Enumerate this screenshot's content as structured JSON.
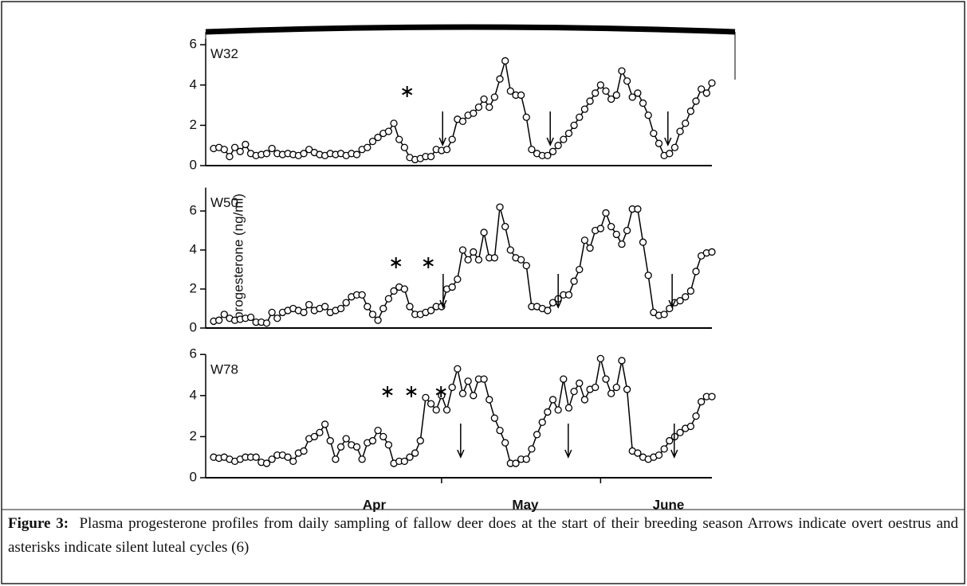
{
  "chart_data": [
    {
      "type": "line",
      "title": "W32",
      "x": [
        0,
        1,
        2,
        3,
        4,
        5,
        6,
        7,
        8,
        9,
        10,
        11,
        12,
        13,
        14,
        15,
        16,
        17,
        18,
        19,
        20,
        21,
        22,
        23,
        24,
        25,
        26,
        27,
        28,
        29,
        30,
        31,
        32,
        33,
        34,
        35,
        36,
        37,
        38,
        39,
        40,
        41,
        42,
        43,
        44,
        45,
        46,
        47,
        48,
        49,
        50,
        51,
        52,
        53,
        54,
        55,
        56,
        57,
        58,
        59,
        60,
        61,
        62,
        63,
        64,
        65,
        66,
        67,
        68,
        69,
        70,
        71,
        72,
        73,
        74,
        75,
        76,
        77,
        78,
        79,
        80,
        81,
        82,
        83,
        84,
        85,
        86,
        87,
        88,
        89,
        90,
        91,
        92,
        93,
        94
      ],
      "values": [
        0.85,
        0.9,
        0.8,
        0.45,
        0.9,
        0.7,
        1.05,
        0.6,
        0.5,
        0.55,
        0.6,
        0.85,
        0.6,
        0.55,
        0.6,
        0.55,
        0.5,
        0.6,
        0.8,
        0.65,
        0.55,
        0.5,
        0.6,
        0.55,
        0.6,
        0.5,
        0.6,
        0.55,
        0.8,
        0.9,
        1.2,
        1.4,
        1.6,
        1.7,
        2.1,
        1.3,
        0.9,
        0.4,
        0.3,
        0.35,
        0.45,
        0.45,
        0.8,
        0.75,
        0.8,
        1.3,
        2.3,
        2.2,
        2.5,
        2.6,
        2.9,
        3.3,
        2.9,
        3.4,
        4.3,
        5.2,
        3.7,
        3.5,
        3.5,
        2.4,
        0.8,
        0.6,
        0.5,
        0.5,
        0.7,
        1.0,
        1.3,
        1.6,
        2.0,
        2.4,
        2.8,
        3.2,
        3.6,
        4.0,
        3.7,
        3.3,
        3.5,
        4.7,
        4.2,
        3.4,
        3.6,
        3.1,
        2.5,
        1.6,
        1.1,
        0.5,
        0.6,
        0.9,
        1.7,
        2.1,
        2.7,
        3.2,
        3.8,
        3.6,
        4.1
      ],
      "xlim": [
        0,
        94
      ],
      "ylim": [
        0,
        6.3
      ],
      "yticks": [
        0,
        2,
        4,
        6
      ],
      "silent_luteal_cycles": [
        36.5
      ],
      "overt_oestrus": [
        43.2,
        63.5,
        85.7
      ]
    },
    {
      "type": "line",
      "title": "W50",
      "x": [
        0,
        1,
        2,
        3,
        4,
        5,
        6,
        7,
        8,
        9,
        10,
        11,
        12,
        13,
        14,
        15,
        16,
        17,
        18,
        19,
        20,
        21,
        22,
        23,
        24,
        25,
        26,
        27,
        28,
        29,
        30,
        31,
        32,
        33,
        34,
        35,
        36,
        37,
        38,
        39,
        40,
        41,
        42,
        43,
        44,
        45,
        46,
        47,
        48,
        49,
        50,
        51,
        52,
        53,
        54,
        55,
        56,
        57,
        58,
        59,
        60,
        61,
        62,
        63,
        64,
        65,
        66,
        67,
        68,
        69,
        70,
        71,
        72,
        73,
        74,
        75,
        76,
        77,
        78,
        79,
        80,
        81,
        82,
        83,
        84,
        85,
        86,
        87,
        88,
        89,
        90,
        91,
        92,
        93,
        94
      ],
      "values": [
        0.35,
        0.4,
        0.7,
        0.5,
        0.4,
        0.45,
        0.5,
        0.55,
        0.3,
        0.3,
        0.25,
        0.8,
        0.5,
        0.8,
        0.9,
        1.0,
        0.9,
        0.8,
        1.2,
        0.9,
        1.0,
        1.1,
        0.8,
        0.9,
        1.0,
        1.3,
        1.6,
        1.7,
        1.7,
        1.1,
        0.7,
        0.4,
        1.0,
        1.5,
        1.9,
        2.1,
        2.0,
        1.1,
        0.7,
        0.7,
        0.8,
        0.9,
        1.1,
        1.1,
        2.0,
        2.1,
        2.5,
        4.0,
        3.5,
        3.9,
        3.5,
        4.9,
        3.6,
        3.6,
        6.2,
        5.2,
        4.0,
        3.6,
        3.5,
        3.2,
        1.1,
        1.1,
        1.0,
        0.9,
        1.3,
        1.5,
        1.7,
        1.7,
        2.4,
        3.0,
        4.5,
        4.1,
        5.0,
        5.1,
        5.9,
        5.2,
        4.8,
        4.3,
        5.0,
        6.1,
        6.1,
        4.4,
        2.7,
        0.8,
        0.65,
        0.7,
        1.0,
        1.3,
        1.4,
        1.6,
        1.9,
        2.9,
        3.7,
        3.85,
        3.9
      ],
      "xlim": [
        0,
        94
      ],
      "ylim": [
        0,
        7.2
      ],
      "yticks": [
        0,
        2,
        4,
        6
      ],
      "silent_luteal_cycles": [
        34.4,
        40.5
      ],
      "overt_oestrus": [
        43.3,
        65,
        86.5
      ]
    },
    {
      "type": "line",
      "title": "W78",
      "x": [
        0,
        1,
        2,
        3,
        4,
        5,
        6,
        7,
        8,
        9,
        10,
        11,
        12,
        13,
        14,
        15,
        16,
        17,
        18,
        19,
        20,
        21,
        22,
        23,
        24,
        25,
        26,
        27,
        28,
        29,
        30,
        31,
        32,
        33,
        34,
        35,
        36,
        37,
        38,
        39,
        40,
        41,
        42,
        43,
        44,
        45,
        46,
        47,
        48,
        49,
        50,
        51,
        52,
        53,
        54,
        55,
        56,
        57,
        58,
        59,
        60,
        61,
        62,
        63,
        64,
        65,
        66,
        67,
        68,
        69,
        70,
        71,
        72,
        73,
        74,
        75,
        76,
        77,
        78,
        79,
        80,
        81,
        82,
        83,
        84,
        85,
        86,
        87,
        88,
        89,
        90,
        91,
        92,
        93,
        94
      ],
      "values": [
        1.0,
        0.95,
        1.0,
        0.9,
        0.8,
        0.9,
        1.0,
        1.0,
        1.0,
        0.75,
        0.7,
        0.9,
        1.1,
        1.1,
        1.0,
        0.8,
        1.2,
        1.3,
        1.9,
        2.0,
        2.2,
        2.6,
        1.8,
        0.9,
        1.5,
        1.9,
        1.6,
        1.5,
        0.9,
        1.7,
        1.8,
        2.3,
        2.0,
        1.6,
        0.7,
        0.8,
        0.8,
        1.0,
        1.2,
        1.8,
        3.9,
        3.6,
        3.3,
        4.0,
        3.3,
        4.4,
        5.3,
        4.1,
        4.7,
        4.0,
        4.8,
        4.8,
        3.8,
        2.9,
        2.3,
        1.7,
        0.7,
        0.7,
        0.9,
        0.9,
        1.4,
        2.1,
        2.7,
        3.2,
        3.8,
        3.3,
        4.8,
        3.4,
        4.2,
        4.6,
        3.8,
        4.3,
        4.4,
        5.8,
        4.8,
        4.1,
        4.4,
        5.7,
        4.3,
        1.3,
        1.2,
        1.0,
        0.9,
        1.0,
        1.1,
        1.4,
        1.8,
        2.0,
        2.2,
        2.4,
        2.5,
        3.0,
        3.7,
        3.95,
        3.95
      ],
      "xlim": [
        0,
        94
      ],
      "ylim": [
        0,
        6
      ],
      "yticks": [
        0,
        2,
        4,
        6
      ],
      "xticks": [
        {
          "value": 30.3,
          "label": "Apr"
        },
        {
          "value": 58.8,
          "label": "May"
        },
        {
          "value": 85.8,
          "label": "June"
        }
      ],
      "minor_xticks": [
        43,
        73
      ],
      "silent_luteal_cycles": [
        32.8,
        37.3,
        42.9
      ],
      "overt_oestrus": [
        46.6,
        66.9,
        86.9
      ]
    }
  ],
  "ylabel": "progesterone (ng/ml)",
  "caption": {
    "label": "Figure 3:",
    "text": "Plasma progesterone profiles from daily sampling of fallow deer does at the start of their breeding season  Arrows indicate overt oestrus and asterisks indicate silent luteal cycles (6)"
  }
}
